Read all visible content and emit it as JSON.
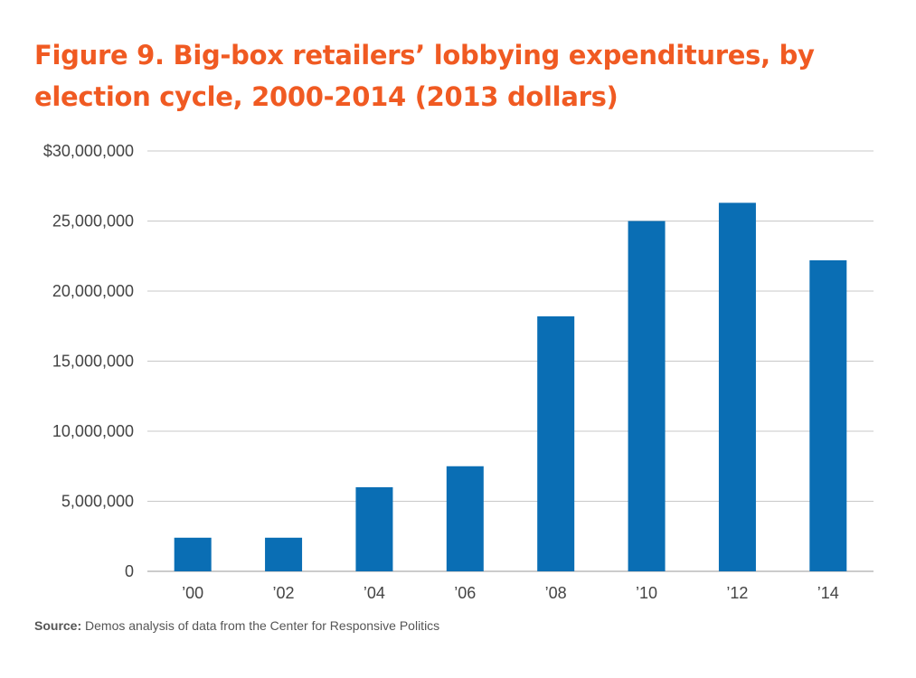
{
  "title": "Figure 9. Big-box retailers’ lobbying expenditures, by election cycle, 2000-2014 (2013 dollars)",
  "colors": {
    "title": "#f05a22",
    "bar": "#0a6eb4",
    "grid": "#c8c8c8",
    "axis_text": "#444444"
  },
  "source": {
    "label": "Source:",
    "text": " Demos analysis of data from the Center for Responsive Politics"
  },
  "chart_data": {
    "type": "bar",
    "title": "Figure 9. Big-box retailers’ lobbying expenditures, by election cycle, 2000-2014 (2013 dollars)",
    "xlabel": "",
    "ylabel": "",
    "categories": [
      "’00",
      "’02",
      "’04",
      "’06",
      "’08",
      "’10",
      "’12",
      "’14"
    ],
    "values": [
      2400000,
      2400000,
      6000000,
      7500000,
      18200000,
      25000000,
      26300000,
      22200000
    ],
    "ylim": [
      0,
      30000000
    ],
    "yticks": [
      0,
      5000000,
      10000000,
      15000000,
      20000000,
      25000000,
      30000000
    ],
    "ytick_labels": [
      "0",
      "5,000,000",
      "10,000,000",
      "15,000,000",
      "20,000,000",
      "25,000,000",
      "$30,000,000"
    ],
    "grid": true,
    "legend": "none"
  }
}
